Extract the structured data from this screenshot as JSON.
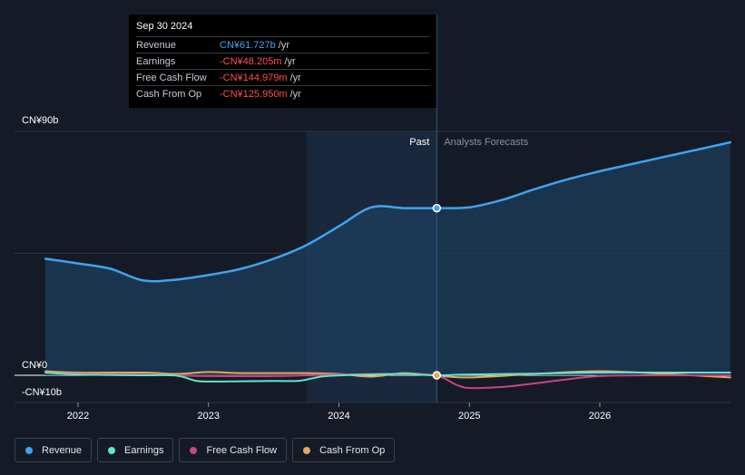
{
  "tooltip": {
    "date": "Sep 30 2024",
    "rows": [
      {
        "label": "Revenue",
        "value": "CN¥61.727b",
        "unit": "/yr",
        "color": "#3fa4f0"
      },
      {
        "label": "Earnings",
        "value": "-CN¥48.205m",
        "unit": "/yr",
        "color": "#ff4f4f"
      },
      {
        "label": "Free Cash Flow",
        "value": "-CN¥144.979m",
        "unit": "/yr",
        "color": "#ff4f4f"
      },
      {
        "label": "Cash From Op",
        "value": "-CN¥125.950m",
        "unit": "/yr",
        "color": "#ff4f4f"
      }
    ]
  },
  "period_labels": {
    "past": "Past",
    "forecast": "Analysts Forecasts"
  },
  "y_tick_labels": {
    "top": "CN¥90b",
    "zero": "CN¥0",
    "neg": "-CN¥10b"
  },
  "legend": [
    {
      "label": "Revenue",
      "color": "#3fa4f0"
    },
    {
      "label": "Earnings",
      "color": "#5ee6cf"
    },
    {
      "label": "Free Cash Flow",
      "color": "#c8457f"
    },
    {
      "label": "Cash From Op",
      "color": "#e8a85a"
    }
  ],
  "chart_data": {
    "type": "area",
    "x_tick_labels": [
      "2022",
      "2023",
      "2024",
      "2025",
      "2026"
    ],
    "x_ticks": [
      2022,
      2023,
      2024,
      2025,
      2026
    ],
    "xlim": [
      2021.5,
      2027.0
    ],
    "ylim": [
      -10,
      90
    ],
    "y_unit": "CN¥ billions",
    "highlight_range": [
      2023.75,
      2024.75
    ],
    "divider_x": 2024.75,
    "series": [
      {
        "name": "Revenue",
        "color": "#3fa4f0",
        "points": [
          [
            2021.75,
            43.0
          ],
          [
            2022.0,
            41.3
          ],
          [
            2022.25,
            39.3
          ],
          [
            2022.5,
            35.0
          ],
          [
            2022.75,
            35.3
          ],
          [
            2023.0,
            37.0
          ],
          [
            2023.25,
            39.3
          ],
          [
            2023.5,
            43.0
          ],
          [
            2023.75,
            48.0
          ],
          [
            2024.0,
            55.0
          ],
          [
            2024.25,
            62.0
          ],
          [
            2024.5,
            61.7
          ],
          [
            2024.75,
            61.7
          ],
          [
            2025.0,
            62.0
          ],
          [
            2025.25,
            64.7
          ],
          [
            2025.5,
            68.7
          ],
          [
            2025.75,
            72.3
          ],
          [
            2026.0,
            75.3
          ],
          [
            2026.25,
            78.0
          ],
          [
            2026.5,
            80.7
          ],
          [
            2026.75,
            83.3
          ],
          [
            2027.0,
            86.0
          ]
        ]
      },
      {
        "name": "Earnings",
        "color": "#5ee6cf",
        "points": [
          [
            2021.75,
            1.0
          ],
          [
            2022.0,
            0.3
          ],
          [
            2022.5,
            0.0
          ],
          [
            2022.75,
            -0.1
          ],
          [
            2022.9,
            -2.0
          ],
          [
            2023.0,
            -2.3
          ],
          [
            2023.25,
            -2.2
          ],
          [
            2023.5,
            -2.1
          ],
          [
            2023.7,
            -2.0
          ],
          [
            2023.9,
            -0.3
          ],
          [
            2024.25,
            0.3
          ],
          [
            2024.5,
            0.5
          ],
          [
            2024.75,
            -0.05
          ],
          [
            2025.0,
            0.3
          ],
          [
            2025.5,
            0.6
          ],
          [
            2026.0,
            1.0
          ],
          [
            2026.5,
            1.0
          ],
          [
            2027.0,
            1.0
          ]
        ]
      },
      {
        "name": "Free Cash Flow",
        "color": "#c8457f",
        "points": [
          [
            2021.75,
            1.0
          ],
          [
            2022.0,
            0.5
          ],
          [
            2022.5,
            0.3
          ],
          [
            2022.75,
            0.0
          ],
          [
            2023.0,
            -0.3
          ],
          [
            2023.5,
            -0.3
          ],
          [
            2024.0,
            0.3
          ],
          [
            2024.5,
            0.5
          ],
          [
            2024.75,
            -0.15
          ],
          [
            2024.9,
            -3.5
          ],
          [
            2025.0,
            -4.7
          ],
          [
            2025.25,
            -4.3
          ],
          [
            2025.5,
            -3.0
          ],
          [
            2025.75,
            -1.5
          ],
          [
            2026.0,
            -0.3
          ],
          [
            2026.5,
            0.0
          ],
          [
            2027.0,
            0.0
          ]
        ]
      },
      {
        "name": "Cash From Op",
        "color": "#e8a85a",
        "points": [
          [
            2021.75,
            1.5
          ],
          [
            2022.0,
            1.0
          ],
          [
            2022.5,
            1.0
          ],
          [
            2022.75,
            0.5
          ],
          [
            2023.0,
            1.2
          ],
          [
            2023.25,
            0.8
          ],
          [
            2023.75,
            0.8
          ],
          [
            2024.0,
            0.5
          ],
          [
            2024.25,
            -0.5
          ],
          [
            2024.5,
            0.8
          ],
          [
            2024.75,
            -0.1
          ],
          [
            2025.0,
            -0.8
          ],
          [
            2025.5,
            0.5
          ],
          [
            2026.0,
            1.5
          ],
          [
            2026.5,
            0.5
          ],
          [
            2027.0,
            -0.8
          ]
        ]
      }
    ]
  }
}
